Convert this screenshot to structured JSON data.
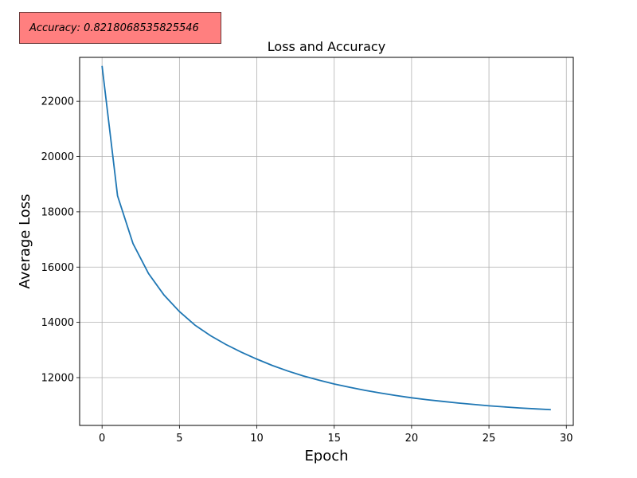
{
  "annotation": {
    "text": "Accuracy: 0.8218068535825546",
    "background": "#ff7f7f"
  },
  "chart_data": {
    "type": "line",
    "title": "Loss and Accuracy",
    "xlabel": "Epoch",
    "ylabel": "Average Loss",
    "xlim": [
      -1.45,
      30.45
    ],
    "ylim": [
      10270,
      23590
    ],
    "xticks": [
      0,
      5,
      10,
      15,
      20,
      25,
      30
    ],
    "yticks": [
      12000,
      14000,
      16000,
      18000,
      20000,
      22000
    ],
    "grid": true,
    "line_color": "#1f77b4",
    "series": [
      {
        "x": [
          0,
          1,
          2,
          3,
          4,
          5,
          6,
          7,
          8,
          9,
          10,
          11,
          12,
          13,
          14,
          15,
          16,
          17,
          18,
          19,
          20,
          21,
          22,
          23,
          24,
          25,
          26,
          27,
          28,
          29
        ],
        "values": [
          23280,
          18580,
          16850,
          15770,
          14990,
          14390,
          13900,
          13520,
          13200,
          12920,
          12670,
          12440,
          12240,
          12060,
          11910,
          11770,
          11650,
          11540,
          11440,
          11350,
          11270,
          11200,
          11140,
          11080,
          11030,
          10980,
          10940,
          10900,
          10870,
          10840
        ]
      }
    ]
  }
}
